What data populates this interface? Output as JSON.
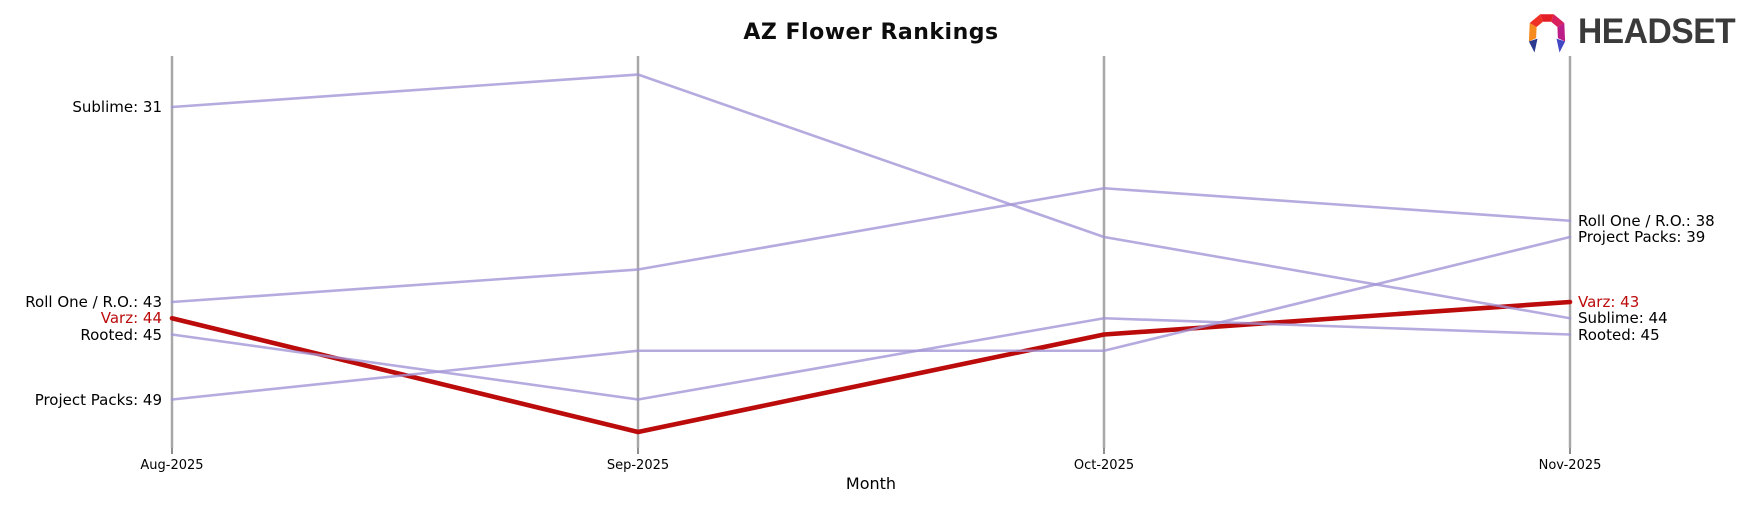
{
  "header": {
    "logo_text": "HEADSET"
  },
  "chart_data": {
    "type": "line",
    "variant": "bump-ranking",
    "title": "AZ Flower Rankings",
    "xlabel": "Month",
    "x": [
      "Aug-2025",
      "Sep-2025",
      "Oct-2025",
      "Nov-2025"
    ],
    "y_inverted": true,
    "rank_range": [
      29,
      51
    ],
    "grid": false,
    "legend": "inline-edge-labels",
    "axis_color": "#a8a8a8",
    "tick_color": "#444444",
    "default_line_color": "#a294d6",
    "highlight_line_color": "#bb0b0b",
    "series": [
      {
        "name": "Sublime",
        "values": [
          31,
          29,
          39,
          44
        ],
        "color": "#a294d6",
        "width": 2.6,
        "highlighted": false
      },
      {
        "name": "Roll One / R.O.",
        "values": [
          43,
          41,
          36,
          38
        ],
        "color": "#a294d6",
        "width": 2.6,
        "highlighted": false
      },
      {
        "name": "Varz",
        "values": [
          44,
          51,
          45,
          43
        ],
        "color": "#bb0b0b",
        "width": 4.6,
        "highlighted": true
      },
      {
        "name": "Rooted",
        "values": [
          45,
          49,
          44,
          45
        ],
        "color": "#a294d6",
        "width": 2.6,
        "highlighted": false
      },
      {
        "name": "Project Packs",
        "values": [
          49,
          46,
          46,
          39
        ],
        "color": "#a294d6",
        "width": 2.6,
        "highlighted": false
      }
    ],
    "start_labels": [
      {
        "text": "Sublime: 31",
        "rank": 31,
        "color": "#000000"
      },
      {
        "text": "Roll One / R.O.: 43",
        "rank": 43,
        "color": "#000000"
      },
      {
        "text": "Varz: 44",
        "rank": 44,
        "color": "#bb0b0b"
      },
      {
        "text": "Rooted: 45",
        "rank": 45,
        "color": "#000000"
      },
      {
        "text": "Project Packs: 49",
        "rank": 49,
        "color": "#000000"
      }
    ],
    "end_labels": [
      {
        "text": "Roll One / R.O.: 38",
        "rank": 38,
        "color": "#000000"
      },
      {
        "text": "Project Packs: 39",
        "rank": 39,
        "color": "#000000"
      },
      {
        "text": "Varz: 43",
        "rank": 43,
        "color": "#bb0b0b"
      },
      {
        "text": "Sublime: 44",
        "rank": 44,
        "color": "#000000"
      },
      {
        "text": "Rooted: 45",
        "rank": 45,
        "color": "#000000"
      }
    ]
  }
}
